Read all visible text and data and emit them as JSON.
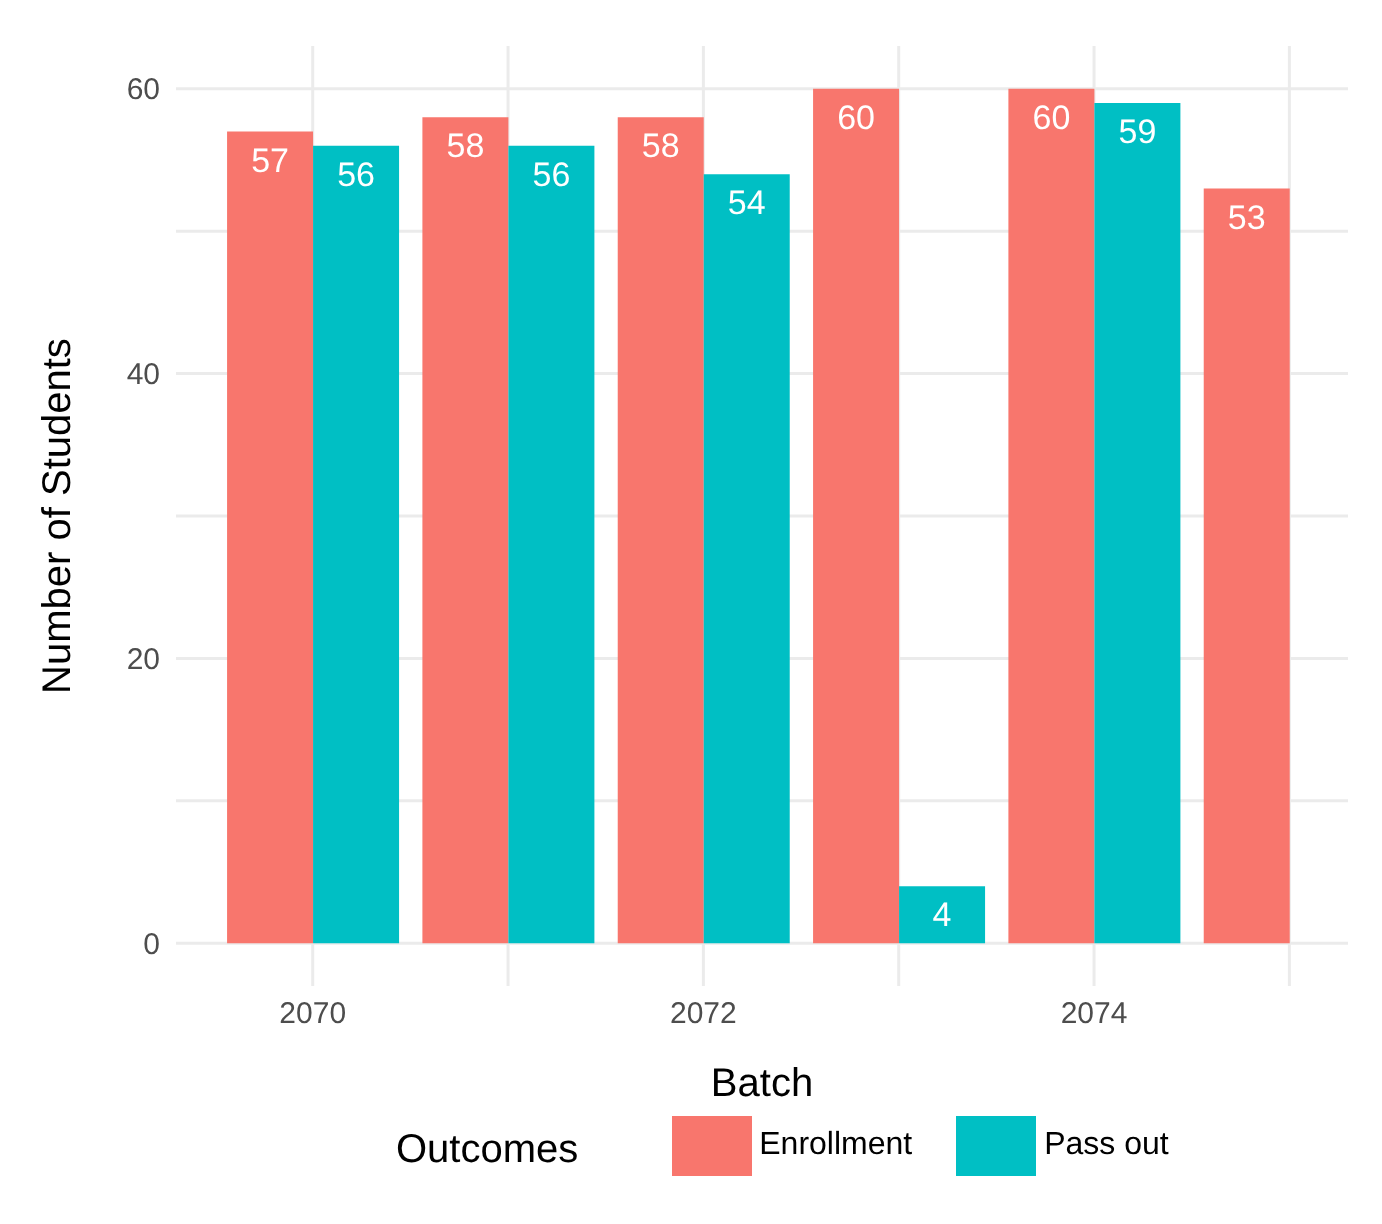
{
  "chart_data": {
    "type": "bar",
    "xlabel": "Batch",
    "ylabel": "Number of Students",
    "legend_title": "Outcomes",
    "x": [
      2070,
      2071,
      2072,
      2073,
      2074,
      2075
    ],
    "series": [
      {
        "name": "Enrollment",
        "color": "#f8766d",
        "values": [
          57,
          58,
          58,
          60,
          60,
          53
        ]
      },
      {
        "name": "Pass out",
        "color": "#00bfc4",
        "values": [
          56,
          56,
          54,
          4,
          59,
          null
        ]
      }
    ],
    "xlim": [
      2069.3,
      2075.3
    ],
    "xticks": [
      2070,
      {
        "value": 2071,
        "label": null
      },
      2072,
      {
        "value": 2073,
        "label": null
      },
      2074,
      {
        "value": 2075,
        "label": null
      }
    ],
    "ylim": [
      -3,
      63
    ],
    "yticks": [
      0,
      {
        "value": 10,
        "label": null
      },
      20,
      {
        "value": 30,
        "label": null
      },
      40,
      {
        "value": 50,
        "label": null
      },
      60
    ],
    "grid": true,
    "legend": "bottom",
    "data_labels": true
  }
}
